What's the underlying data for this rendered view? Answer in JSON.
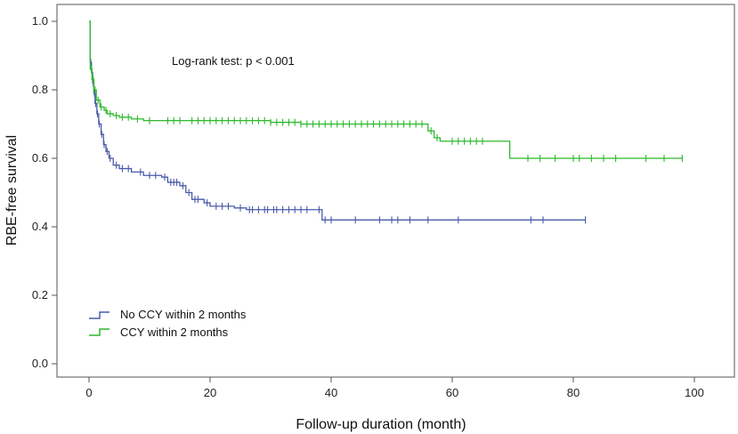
{
  "chart_data": {
    "type": "line",
    "subtype": "kaplan-meier",
    "xlabel": "Follow-up duration (month)",
    "ylabel": "RBE-free survival",
    "xlim": [
      0,
      100
    ],
    "ylim": [
      0.0,
      1.0
    ],
    "xticks": [
      0,
      20,
      40,
      60,
      80,
      100
    ],
    "yticks": [
      "0.0",
      "0.2",
      "0.4",
      "0.6",
      "0.8",
      "1.0"
    ],
    "annotation": "Log-rank test: p < 0.001",
    "legend_position": "bottom-left",
    "series": [
      {
        "name": "No CCY within 2 months",
        "color": "#4a5ba8",
        "steps": [
          [
            0,
            1.0
          ],
          [
            0.2,
            0.88
          ],
          [
            0.4,
            0.85
          ],
          [
            0.6,
            0.82
          ],
          [
            0.8,
            0.79
          ],
          [
            1.0,
            0.76
          ],
          [
            1.3,
            0.73
          ],
          [
            1.6,
            0.7
          ],
          [
            2.0,
            0.67
          ],
          [
            2.4,
            0.64
          ],
          [
            2.8,
            0.62
          ],
          [
            3.3,
            0.6
          ],
          [
            4.0,
            0.58
          ],
          [
            5.0,
            0.57
          ],
          [
            7.0,
            0.56
          ],
          [
            9.0,
            0.55
          ],
          [
            12.0,
            0.545
          ],
          [
            13.0,
            0.53
          ],
          [
            15.0,
            0.52
          ],
          [
            16.0,
            0.5
          ],
          [
            17.0,
            0.48
          ],
          [
            19.0,
            0.47
          ],
          [
            20.0,
            0.46
          ],
          [
            24.0,
            0.455
          ],
          [
            26.0,
            0.45
          ],
          [
            38.5,
            0.42
          ],
          [
            82.0,
            0.42
          ]
        ],
        "censored": [
          0.3,
          0.5,
          0.7,
          0.9,
          1.1,
          1.4,
          1.7,
          2.1,
          2.5,
          3.0,
          3.5,
          4.5,
          5.5,
          6.5,
          8.5,
          10.0,
          11.0,
          12.5,
          13.5,
          14.0,
          14.5,
          15.5,
          16.5,
          17.5,
          18.0,
          19.5,
          21.0,
          22.0,
          23.0,
          25.0,
          26.5,
          27.0,
          28.0,
          29.0,
          29.5,
          30.5,
          31.0,
          32.0,
          33.0,
          34.0,
          35.0,
          36.0,
          38.0,
          39.0,
          40.0,
          44.0,
          48.0,
          50.0,
          51.0,
          53.0,
          56.0,
          61.0,
          73.0,
          75.0,
          82.0
        ]
      },
      {
        "name": "CCY within 2 months",
        "color": "#2eb82e",
        "steps": [
          [
            0,
            1.0
          ],
          [
            0.2,
            0.86
          ],
          [
            0.5,
            0.83
          ],
          [
            0.8,
            0.8
          ],
          [
            1.2,
            0.77
          ],
          [
            1.8,
            0.75
          ],
          [
            2.5,
            0.74
          ],
          [
            3.0,
            0.73
          ],
          [
            4.0,
            0.725
          ],
          [
            5.0,
            0.72
          ],
          [
            7.0,
            0.715
          ],
          [
            9.0,
            0.71
          ],
          [
            30.0,
            0.705
          ],
          [
            35.0,
            0.7
          ],
          [
            56.0,
            0.68
          ],
          [
            57.0,
            0.66
          ],
          [
            58.0,
            0.65
          ],
          [
            66.0,
            0.65
          ],
          [
            69.5,
            0.6
          ],
          [
            98.0,
            0.6
          ]
        ],
        "censored": [
          0.4,
          0.7,
          1.0,
          1.5,
          2.0,
          2.8,
          3.5,
          4.5,
          5.5,
          6.5,
          8.0,
          10.0,
          13.0,
          14.0,
          15.0,
          17.0,
          18.0,
          19.0,
          20.0,
          21.0,
          22.0,
          23.0,
          24.0,
          25.0,
          26.0,
          27.0,
          28.0,
          29.0,
          30.0,
          31.0,
          32.0,
          33.0,
          34.0,
          35.0,
          36.0,
          37.0,
          38.0,
          39.0,
          40.0,
          41.0,
          42.0,
          43.0,
          44.0,
          45.0,
          46.0,
          47.0,
          48.0,
          49.0,
          50.0,
          51.0,
          52.0,
          53.0,
          54.0,
          55.0,
          56.5,
          57.5,
          60.0,
          61.0,
          62.0,
          63.0,
          64.0,
          65.0,
          72.5,
          74.5,
          77.0,
          80.0,
          81.0,
          83.0,
          85.0,
          87.0,
          92.0,
          95.0,
          98.0
        ]
      }
    ]
  }
}
